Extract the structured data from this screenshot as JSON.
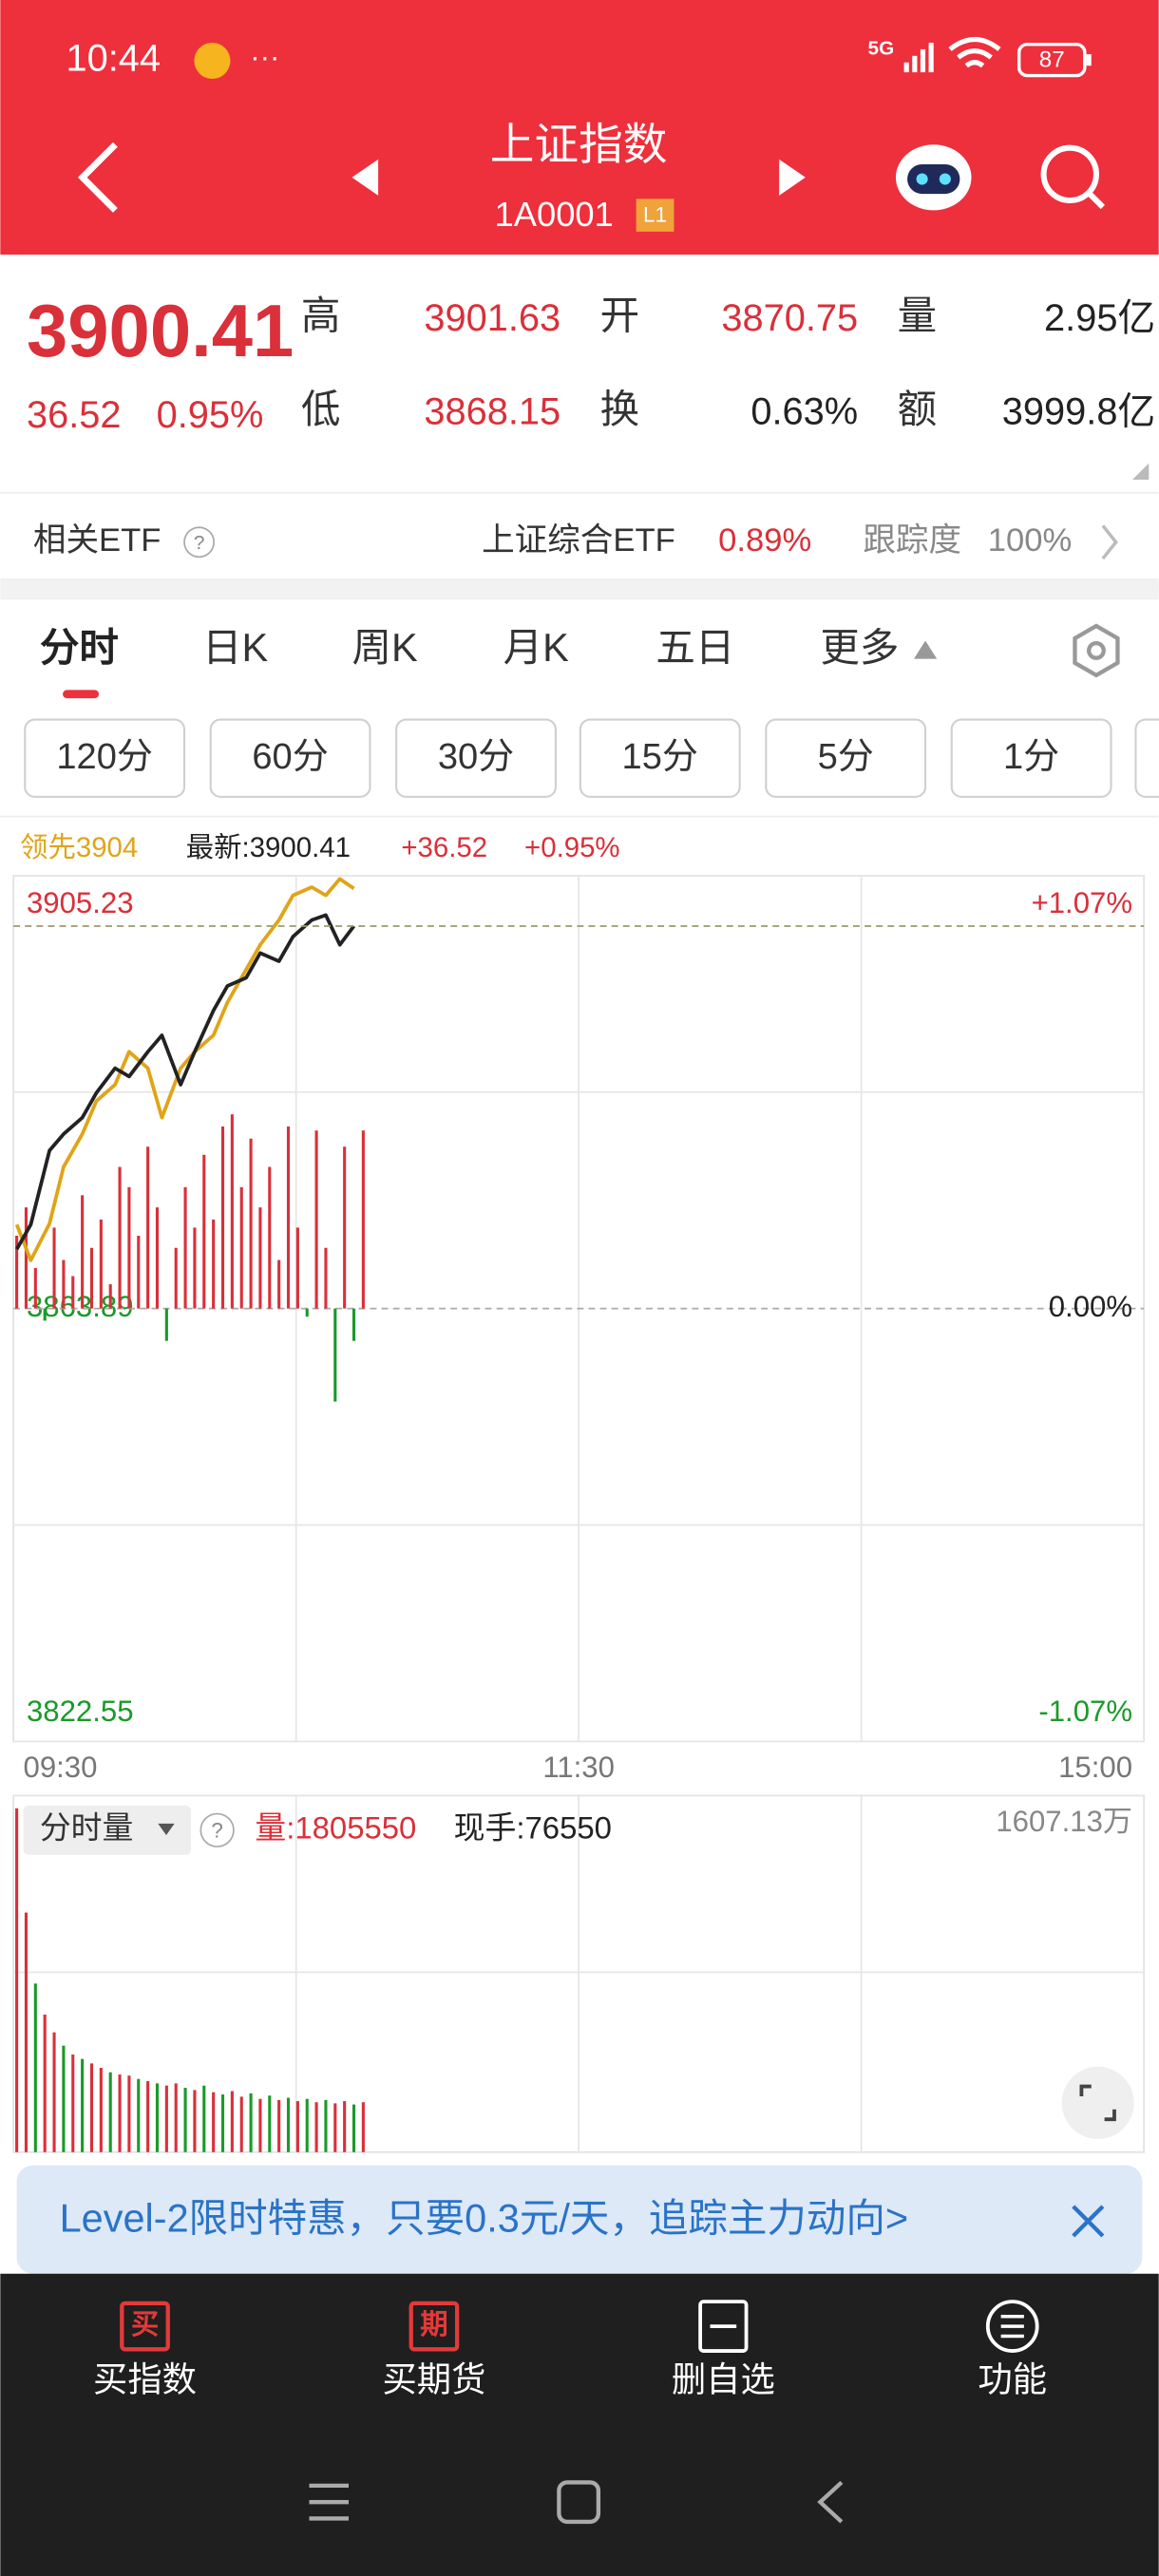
{
  "status": {
    "time": "10:44",
    "network": "5G",
    "battery": "87"
  },
  "header": {
    "title": "上证指数",
    "code": "1A0001",
    "badge": "L1"
  },
  "quote": {
    "price": "3900.41",
    "change": "36.52",
    "change_pct": "0.95%",
    "fields": [
      {
        "label": "高",
        "value": "3901.63"
      },
      {
        "label": "开",
        "value": "3870.75"
      },
      {
        "label": "量",
        "value": "2.95亿"
      },
      {
        "label": "低",
        "value": "3868.15"
      },
      {
        "label": "换",
        "value": "0.63%"
      },
      {
        "label": "额",
        "value": "3999.8亿"
      }
    ]
  },
  "etf": {
    "label": "相关ETF",
    "name": "上证综合ETF",
    "pct": "0.89%",
    "track_label": "跟踪度",
    "track": "100%"
  },
  "tabs": [
    "分时",
    "日K",
    "周K",
    "月K",
    "五日",
    "更多"
  ],
  "periods": [
    "120分",
    "60分",
    "30分",
    "15分",
    "5分",
    "1分"
  ],
  "chart_data": [
    {
      "type": "line",
      "change": "+36.52",
      "change_pct": "+0.95%",
      "grid": true,
      "x": [
        0,
        3,
        7,
        10,
        14,
        17,
        21,
        24,
        28,
        31,
        35,
        38,
        42,
        45,
        49,
        52,
        56,
        59,
        63,
        66,
        69,
        72
      ],
      "xlim": [
        0,
        240
      ],
      "xticks": [
        {
          "value": 0,
          "label": "09:30"
        },
        {
          "value": 120,
          "label": "11:30"
        },
        {
          "value": 240,
          "label": "15:00"
        }
      ],
      "ylim": [
        3822.55,
        3905.23
      ],
      "yticks": [
        3905.23,
        3863.89,
        3822.55
      ],
      "y2lim": [
        -1.07,
        1.07
      ],
      "y2ticks": [
        {
          "value": 1.07,
          "label": "+1.07%"
        },
        {
          "value": 0,
          "label": "0.00%"
        },
        {
          "value": -1.07,
          "label": "-1.07%"
        }
      ],
      "series": [
        {
          "name": "领先3904",
          "color": "#e0a418",
          "values": [
            3871.91,
            3868.5,
            3872.0,
            3877.41,
            3880.55,
            3883.7,
            3885.27,
            3888.41,
            3886.84,
            3882.12,
            3886.84,
            3888.41,
            3889.98,
            3893.13,
            3896.27,
            3898.63,
            3900.99,
            3903.35,
            3904.13,
            3903.35,
            3904.92,
            3904.0
          ]
        },
        {
          "name": "最新:3900.41",
          "color": "#222222",
          "values": [
            3869.55,
            3871.91,
            3878.98,
            3880.55,
            3882.12,
            3884.48,
            3886.84,
            3886.05,
            3888.41,
            3889.98,
            3885.27,
            3888.41,
            3892.34,
            3894.7,
            3895.48,
            3897.84,
            3897.06,
            3899.41,
            3900.99,
            3901.46,
            3898.63,
            3900.41
          ]
        }
      ],
      "bars": {
        "axis": "y2",
        "up_color": "#d9303a",
        "down_color": "#1a9a2a",
        "x": [
          0,
          2,
          4,
          6,
          8,
          10,
          12,
          14,
          16,
          18,
          20,
          22,
          24,
          26,
          28,
          30,
          32,
          34,
          36,
          38,
          40,
          42,
          44,
          46,
          48,
          50,
          52,
          54,
          56,
          58,
          60,
          62,
          64,
          66,
          68,
          70,
          72,
          74
        ],
        "values": [
          0.18,
          0.25,
          0.1,
          -0.03,
          0.2,
          0.12,
          0.08,
          0.28,
          0.15,
          0.22,
          0.06,
          0.35,
          0.3,
          0.18,
          0.4,
          0.25,
          -0.08,
          0.15,
          0.3,
          0.2,
          0.38,
          0.22,
          0.45,
          0.48,
          0.3,
          0.42,
          0.25,
          0.35,
          0.12,
          0.45,
          0.2,
          -0.02,
          0.44,
          0.15,
          -0.23,
          0.4,
          -0.08,
          0.44
        ]
      }
    },
    {
      "type": "bar",
      "selector": "分时量",
      "volume": "量:1805550",
      "current_hand": "现手:76550",
      "x": [
        0,
        2,
        4,
        6,
        8,
        10,
        12,
        14,
        16,
        18,
        20,
        22,
        24,
        26,
        28,
        30,
        32,
        34,
        36,
        38,
        40,
        42,
        44,
        46,
        48,
        50,
        52,
        54,
        56,
        58,
        60,
        62,
        64,
        66,
        68,
        70,
        72,
        74
      ],
      "xlim": [
        0,
        240
      ],
      "ylim": [
        0,
        1607.13
      ],
      "yticks": [
        {
          "value": 1607.13,
          "label": "1607.13万"
        }
      ],
      "values": [
        1550,
        1080,
        760,
        620,
        540,
        480,
        440,
        420,
        400,
        380,
        360,
        350,
        345,
        330,
        320,
        310,
        300,
        310,
        290,
        280,
        300,
        270,
        260,
        275,
        250,
        265,
        240,
        255,
        235,
        245,
        230,
        240,
        225,
        235,
        220,
        230,
        215,
        225
      ],
      "colors": [
        "#d9303a",
        "#d9303a",
        "#1a9a2a",
        "#d9303a",
        "#d9303a",
        "#1a9a2a",
        "#d9303a",
        "#1a9a2a",
        "#d9303a",
        "#d9303a",
        "#1a9a2a",
        "#d9303a",
        "#d9303a",
        "#1a9a2a",
        "#d9303a",
        "#1a9a2a",
        "#d9303a",
        "#d9303a",
        "#1a9a2a",
        "#d9303a",
        "#1a9a2a",
        "#d9303a",
        "#1a9a2a",
        "#d9303a",
        "#d9303a",
        "#1a9a2a",
        "#d9303a",
        "#1a9a2a",
        "#d9303a",
        "#1a9a2a",
        "#d9303a",
        "#1a9a2a",
        "#d9303a",
        "#1a9a2a",
        "#d9303a",
        "#d9303a",
        "#1a9a2a",
        "#d9303a"
      ]
    }
  ],
  "banner": "Level-2限时特惠，只要0.3元/天，追踪主力动向>",
  "nav": [
    {
      "icon": "买",
      "label": "买指数"
    },
    {
      "icon": "期",
      "label": "买期货"
    },
    {
      "label": "删自选"
    },
    {
      "label": "功能"
    }
  ]
}
